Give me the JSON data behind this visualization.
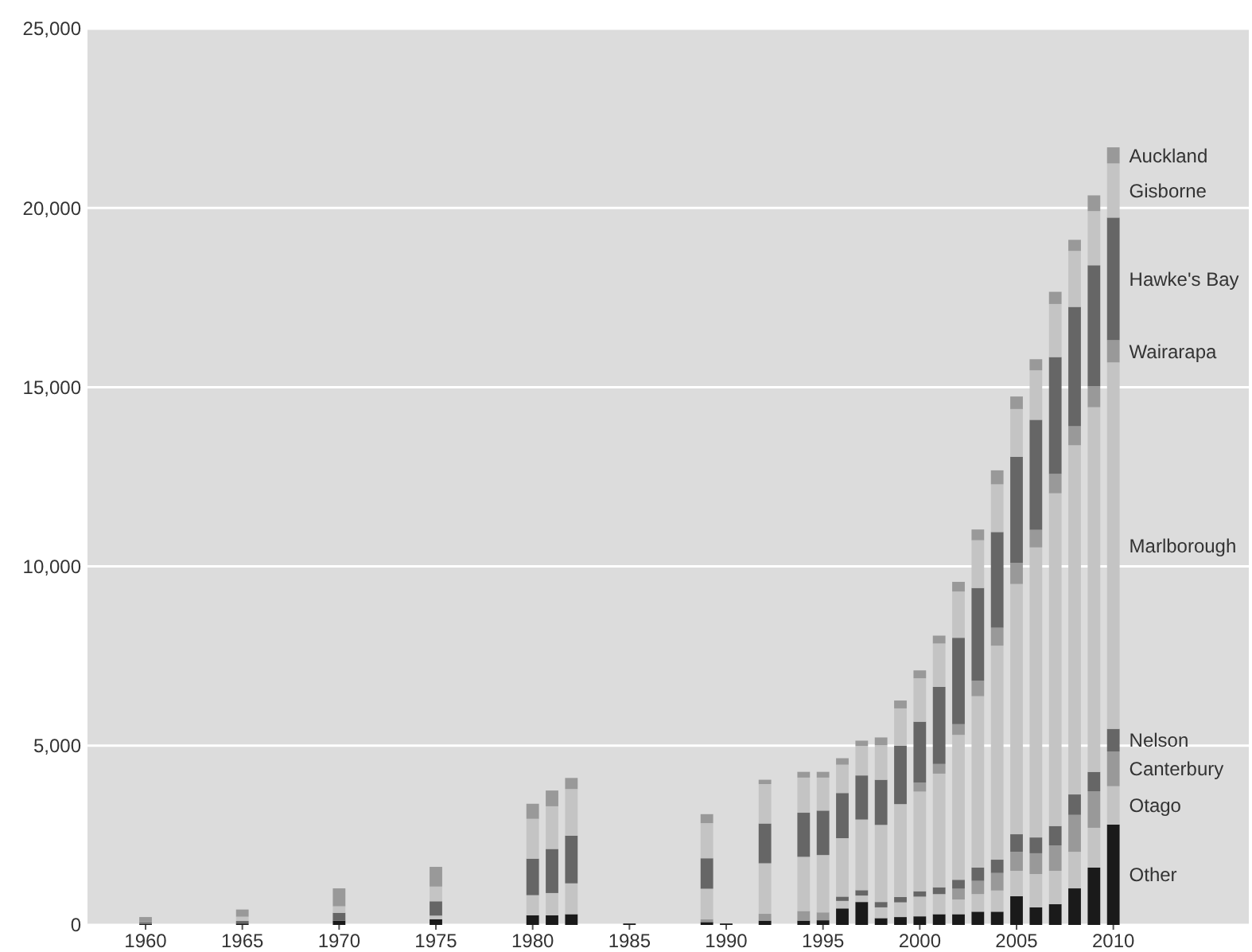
{
  "chart_data": {
    "type": "bar",
    "stacked": true,
    "x": [
      1960,
      1965,
      1970,
      1975,
      1980,
      1981,
      1982,
      1985,
      1989,
      1990,
      1992,
      1994,
      1995,
      1996,
      1997,
      1998,
      1999,
      2000,
      2001,
      2002,
      2003,
      2004,
      2005,
      2006,
      2007,
      2008,
      2009,
      2010
    ],
    "xlim": [
      1957,
      2017
    ],
    "xticks": [
      1960,
      1965,
      1970,
      1975,
      1980,
      1985,
      1990,
      1995,
      2000,
      2005,
      2010
    ],
    "ylim": [
      0,
      25000
    ],
    "yticks": [
      {
        "value": 0,
        "label": "0"
      },
      {
        "value": 5000,
        "label": "5,000"
      },
      {
        "value": 10000,
        "label": "10,000"
      },
      {
        "value": 15000,
        "label": "15,000"
      },
      {
        "value": 20000,
        "label": "20,000"
      },
      {
        "value": 25000,
        "label": "25,000"
      }
    ],
    "grid": "y",
    "legend": false,
    "series": [
      {
        "name": "Other",
        "color": "#1a1a1a",
        "values": [
          30,
          40,
          120,
          160,
          270,
          270,
          300,
          40,
          80,
          40,
          120,
          120,
          130,
          460,
          640,
          190,
          220,
          240,
          300,
          300,
          370,
          370,
          800,
          490,
          580,
          1020,
          1600,
          2800
        ]
      },
      {
        "name": "Otago",
        "color": "#c4c4c4",
        "values": [
          null,
          null,
          null,
          null,
          null,
          null,
          null,
          null,
          null,
          null,
          null,
          null,
          null,
          210,
          180,
          300,
          410,
          550,
          560,
          410,
          490,
          590,
          710,
          930,
          930,
          1020,
          1110,
          1070
        ]
      },
      {
        "name": "Canterbury",
        "color": "#999999",
        "values": [
          null,
          null,
          null,
          null,
          null,
          null,
          null,
          null,
          80,
          null,
          190,
          270,
          220,
          null,
          null,
          null,
          null,
          null,
          null,
          300,
          370,
          490,
          530,
          580,
          710,
          1030,
          1020,
          970
        ]
      },
      {
        "name": "Nelson",
        "color": "#666666",
        "values": [
          null,
          null,
          null,
          null,
          null,
          null,
          null,
          null,
          null,
          null,
          null,
          null,
          null,
          120,
          150,
          150,
          150,
          150,
          190,
          250,
          370,
          370,
          490,
          440,
          540,
          570,
          540,
          630
        ]
      },
      {
        "name": "Marlborough",
        "color": "#c4c4c4",
        "values": [
          null,
          null,
          null,
          100,
          560,
          620,
          860,
          null,
          850,
          null,
          1410,
          1510,
          1600,
          1630,
          1970,
          2150,
          2590,
          2780,
          3170,
          4040,
          4780,
          5970,
          6980,
          8090,
          9280,
          9740,
          10170,
          10220
        ]
      },
      {
        "name": "Wairarapa",
        "color": "#999999",
        "values": [
          null,
          null,
          null,
          null,
          null,
          null,
          null,
          null,
          null,
          null,
          null,
          null,
          null,
          null,
          null,
          null,
          null,
          250,
          270,
          300,
          430,
          500,
          590,
          490,
          540,
          530,
          580,
          620
        ]
      },
      {
        "name": "Hawke's Bay",
        "color": "#666666",
        "values": [
          40,
          70,
          220,
          400,
          1020,
          1230,
          1330,
          null,
          850,
          null,
          1110,
          1230,
          1240,
          1260,
          1230,
          1260,
          1630,
          1700,
          2150,
          2410,
          2590,
          2670,
          2960,
          3070,
          3260,
          3330,
          3380,
          3420
        ]
      },
      {
        "name": "Gisborne",
        "color": "#c4c4c4",
        "values": [
          null,
          120,
          180,
          410,
          1110,
          1190,
          1300,
          null,
          980,
          null,
          1100,
          980,
          920,
          790,
          820,
          960,
          1040,
          1210,
          1210,
          1290,
          1330,
          1330,
          1330,
          1380,
          1480,
          1560,
          1510,
          1510
        ]
      },
      {
        "name": "Auckland",
        "color": "#999999",
        "values": [
          150,
          200,
          500,
          550,
          420,
          440,
          310,
          null,
          250,
          null,
          120,
          160,
          160,
          180,
          150,
          220,
          220,
          220,
          220,
          270,
          300,
          390,
          350,
          310,
          340,
          310,
          440,
          450
        ]
      }
    ]
  }
}
